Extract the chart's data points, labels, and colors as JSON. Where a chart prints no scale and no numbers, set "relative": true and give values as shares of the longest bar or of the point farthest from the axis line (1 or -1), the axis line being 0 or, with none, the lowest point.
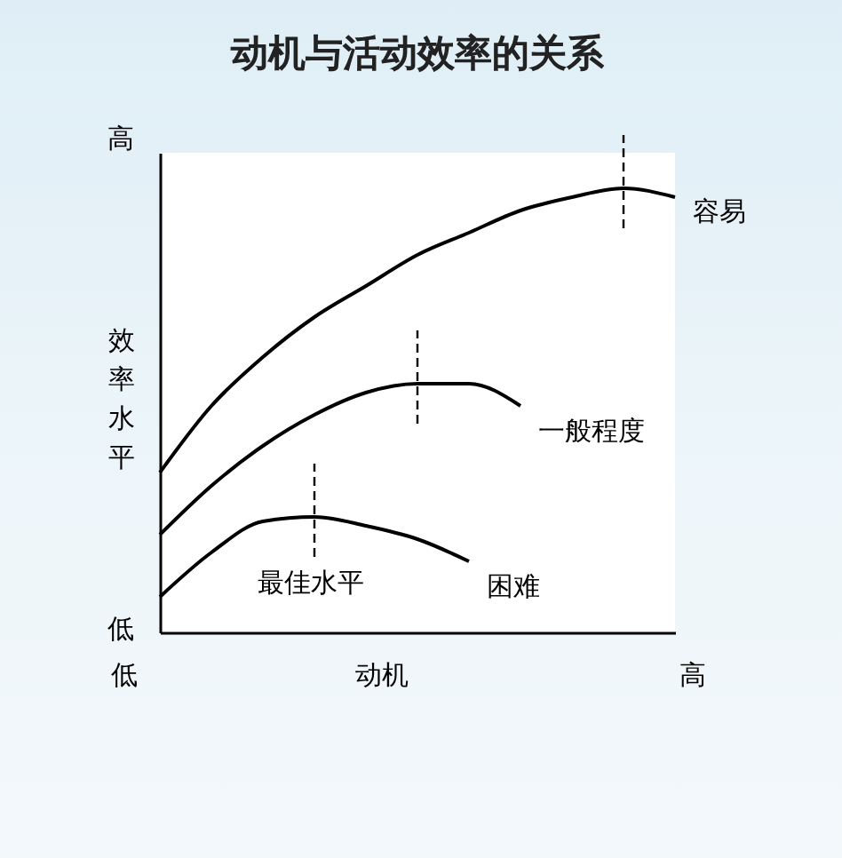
{
  "chart_data": {
    "type": "line",
    "title": "动机与活动效率的关系",
    "xlabel": "动机",
    "ylabel": "效率水平",
    "relative": true,
    "categories": [
      null,
      null,
      null,
      null,
      null,
      null,
      null,
      null,
      null,
      null,
      null
    ],
    "series": [
      {
        "name": "容易",
        "color": "#000000",
        "values": [
          0.36,
          0.51,
          0.62,
          0.71,
          0.78,
          0.85,
          0.9,
          0.95,
          0.98,
          1.0,
          0.98
        ]
      },
      {
        "name": "一般程度",
        "color": "#000000",
        "values": [
          0.22,
          0.33,
          0.42,
          0.49,
          0.54,
          0.56,
          0.56,
          0.51,
          null,
          null,
          null
        ]
      },
      {
        "name": "困难",
        "color": "#000000",
        "values": [
          0.08,
          0.18,
          0.25,
          0.26,
          0.24,
          0.21,
          0.16,
          null,
          null,
          null,
          null
        ]
      }
    ],
    "annotations": [
      "最佳水平",
      "低",
      "高",
      "低",
      "高"
    ],
    "marker": "none",
    "line_style": "solid"
  }
}
